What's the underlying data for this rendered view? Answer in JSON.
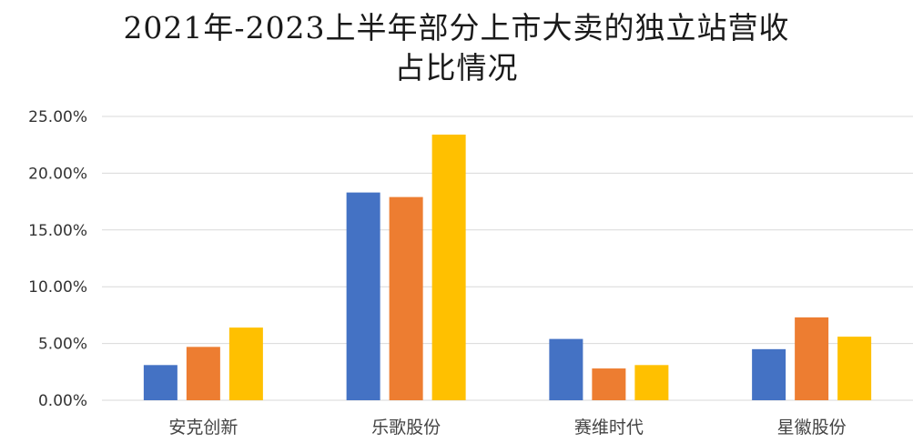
{
  "chart_data": {
    "type": "bar",
    "title_line1": "2021年-2023上半年部分上市大卖的独立站营收",
    "title_line2": "占比情况",
    "categories": [
      "安克创新",
      "乐歌股份",
      "赛维时代",
      "星徽股份"
    ],
    "series": [
      {
        "values": [
          0.031,
          0.183,
          0.054,
          0.045
        ],
        "color": "#4472C4"
      },
      {
        "values": [
          0.047,
          0.179,
          0.028,
          0.073
        ],
        "color": "#ED7D31"
      },
      {
        "values": [
          0.064,
          0.234,
          0.031,
          0.056
        ],
        "color": "#FFC000"
      }
    ],
    "ylim": [
      0,
      0.25
    ],
    "yticks": [
      0,
      0.05,
      0.1,
      0.15,
      0.2,
      0.25
    ],
    "ytick_labels": [
      "0.00%",
      "5.00%",
      "10.00%",
      "15.00%",
      "20.00%",
      "25.00%"
    ],
    "xlabel": "",
    "ylabel": "",
    "grid": true,
    "legend": false
  }
}
